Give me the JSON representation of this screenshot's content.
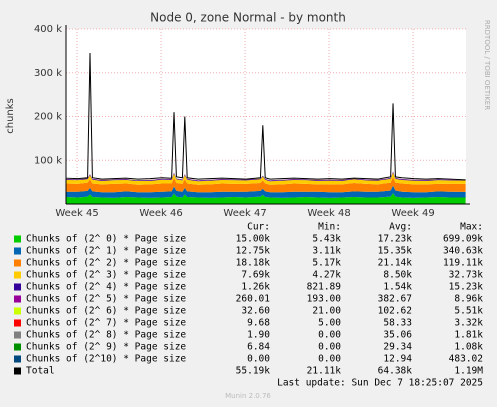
{
  "chart_data": {
    "type": "stacked-area",
    "title": "Node 0, zone Normal - by month",
    "y_label": "chunks",
    "side_text": "RRDTOOL / TOBI OETIKER",
    "x": [
      0,
      1,
      1.8,
      2.0,
      2.2,
      3,
      4,
      5,
      6,
      7,
      8,
      8.8,
      9.0,
      9.2,
      9.7,
      9.9,
      10.1,
      11,
      12,
      13,
      14,
      15,
      16.2,
      16.4,
      16.6,
      17,
      18,
      19,
      20,
      21,
      22,
      23,
      24,
      25,
      26,
      27.05,
      27.25,
      27.45,
      28,
      29,
      30,
      31,
      32,
      33.3
    ],
    "xlim": [
      0,
      33.33
    ],
    "xticks": [
      {
        "value": 0.92,
        "label": "Week 45"
      },
      {
        "value": 7.92,
        "label": "Week 46"
      },
      {
        "value": 14.92,
        "label": "Week 47"
      },
      {
        "value": 21.92,
        "label": "Week 48"
      },
      {
        "value": 28.92,
        "label": "Week 49"
      }
    ],
    "ylim": [
      0,
      400000
    ],
    "yticks": [
      {
        "value": 100000,
        "label": "100 k"
      },
      {
        "value": 200000,
        "label": "200 k"
      },
      {
        "value": 300000,
        "label": "300 k"
      },
      {
        "value": 400000,
        "label": "400 k"
      }
    ],
    "grid": true,
    "stat_headers": [
      "Cur:",
      "Min:",
      "Avg:",
      "Max:"
    ],
    "series": [
      {
        "name": "Chunks of (2^ 0) * Page size",
        "color": "#00cc00",
        "stats": [
          "15.00k",
          "5.43k",
          "17.23k",
          "699.09k"
        ],
        "values": [
          16000,
          15000,
          17000,
          22000,
          16000,
          15000,
          14000,
          16000,
          15000,
          14000,
          15000,
          16000,
          24000,
          17000,
          15000,
          22000,
          16000,
          15000,
          14000,
          15000,
          16000,
          15000,
          17000,
          21000,
          16000,
          15000,
          14000,
          15000,
          16000,
          15000,
          14000,
          15000,
          16000,
          15000,
          15000,
          17000,
          25000,
          17000,
          15000,
          14000,
          15000,
          16000,
          15000,
          15000
        ]
      },
      {
        "name": "Chunks of (2^ 1) * Page size",
        "color": "#0066b3",
        "stats": [
          "12.75k",
          "3.11k",
          "15.35k",
          "340.63k"
        ],
        "values": [
          12000,
          13000,
          13000,
          15000,
          13000,
          12000,
          13000,
          13000,
          12000,
          13000,
          13000,
          13000,
          16000,
          13000,
          13000,
          15000,
          13000,
          12000,
          13000,
          13000,
          12000,
          13000,
          13000,
          14000,
          13000,
          12000,
          13000,
          13000,
          12000,
          13000,
          13000,
          12000,
          13000,
          13000,
          13000,
          14000,
          17000,
          14000,
          13000,
          13000,
          12000,
          13000,
          13000,
          12750
        ]
      },
      {
        "name": "Chunks of (2^ 2) * Page size",
        "color": "#ff8000",
        "stats": [
          "18.18k",
          "5.17k",
          "21.14k",
          "119.11k"
        ],
        "values": [
          19000,
          18000,
          19000,
          20000,
          18000,
          18000,
          19000,
          18000,
          17000,
          18000,
          19000,
          18000,
          20000,
          18000,
          18000,
          20000,
          18000,
          17000,
          18000,
          19000,
          18000,
          18000,
          18000,
          19000,
          18000,
          17000,
          18000,
          19000,
          18000,
          17000,
          18000,
          18000,
          19000,
          18000,
          17000,
          18000,
          20000,
          18000,
          19000,
          18000,
          18000,
          17000,
          18000,
          18180
        ]
      },
      {
        "name": "Chunks of (2^ 3) * Page size",
        "color": "#ffcc00",
        "stats": [
          "7.69k",
          "4.27k",
          "8.50k",
          "32.73k"
        ],
        "values": [
          8000,
          8500,
          8000,
          9000,
          8500,
          8000,
          8500,
          8000,
          8500,
          8000,
          8500,
          8000,
          9500,
          8500,
          8000,
          9000,
          8500,
          8000,
          8500,
          8000,
          8500,
          8000,
          8500,
          9000,
          8500,
          8000,
          8500,
          8000,
          8500,
          8000,
          8500,
          8000,
          8500,
          8000,
          8500,
          8500,
          10000,
          8500,
          8000,
          8500,
          8000,
          8500,
          8000,
          7690
        ]
      },
      {
        "name": "Chunks of (2^ 4) * Page size",
        "color": "#330099",
        "stats": [
          "1.26k",
          "821.89",
          "1.54k",
          "15.23k"
        ],
        "values": [
          1500,
          1500,
          1500,
          1600,
          1500,
          1500,
          1500,
          1500,
          1500,
          1500,
          1500,
          1500,
          1700,
          1500,
          1500,
          1600,
          1500,
          1500,
          1500,
          1500,
          1500,
          1500,
          1500,
          1600,
          1500,
          1500,
          1500,
          1500,
          1500,
          1500,
          1500,
          1500,
          1500,
          1500,
          1500,
          1500,
          1800,
          1500,
          1500,
          1500,
          1500,
          1500,
          1500,
          1260
        ]
      },
      {
        "name": "Chunks of (2^ 5) * Page size",
        "color": "#990099",
        "stats": [
          "260.01",
          "193.00",
          "382.67",
          "8.96k"
        ],
        "values": [
          380,
          380,
          380,
          400,
          380,
          380,
          380,
          380,
          380,
          380,
          380,
          380,
          420,
          380,
          380,
          400,
          380,
          380,
          380,
          380,
          380,
          380,
          380,
          400,
          380,
          380,
          380,
          380,
          380,
          380,
          380,
          380,
          380,
          380,
          380,
          380,
          450,
          380,
          380,
          380,
          380,
          380,
          380,
          260
        ]
      },
      {
        "name": "Chunks of (2^ 6) * Page size",
        "color": "#ccff00",
        "stats": [
          "32.60",
          "21.00",
          "102.62",
          "5.51k"
        ],
        "values": [
          100,
          100,
          100,
          110,
          100,
          100,
          100,
          100,
          100,
          100,
          100,
          100,
          120,
          100,
          100,
          110,
          100,
          100,
          100,
          100,
          100,
          100,
          100,
          110,
          100,
          100,
          100,
          100,
          100,
          100,
          100,
          100,
          100,
          100,
          100,
          100,
          130,
          100,
          100,
          100,
          100,
          100,
          100,
          33
        ]
      },
      {
        "name": "Chunks of (2^ 7) * Page size",
        "color": "#ff0000",
        "stats": [
          "9.68",
          "5.00",
          "58.33",
          "3.32k"
        ],
        "values": [
          58,
          58,
          58,
          60,
          58,
          58,
          58,
          58,
          58,
          58,
          58,
          58,
          62,
          58,
          58,
          60,
          58,
          58,
          58,
          58,
          58,
          58,
          58,
          60,
          58,
          58,
          58,
          58,
          58,
          58,
          58,
          58,
          58,
          58,
          58,
          58,
          64,
          58,
          58,
          58,
          58,
          58,
          58,
          10
        ]
      },
      {
        "name": "Chunks of (2^ 8) * Page size",
        "color": "#808080",
        "stats": [
          "1.90",
          "0.00",
          "35.06",
          "1.81k"
        ],
        "values": [
          35,
          35,
          35,
          36,
          35,
          35,
          35,
          35,
          35,
          35,
          35,
          35,
          37,
          35,
          35,
          36,
          35,
          35,
          35,
          35,
          35,
          35,
          35,
          36,
          35,
          35,
          35,
          35,
          35,
          35,
          35,
          35,
          35,
          35,
          35,
          35,
          38,
          35,
          35,
          35,
          35,
          35,
          35,
          2
        ]
      },
      {
        "name": "Chunks of (2^ 9) * Page size",
        "color": "#008f00",
        "stats": [
          "6.84",
          "0.00",
          "29.34",
          "1.08k"
        ],
        "values": [
          29,
          29,
          29,
          30,
          29,
          29,
          29,
          29,
          29,
          29,
          29,
          29,
          31,
          29,
          29,
          30,
          29,
          29,
          29,
          29,
          29,
          29,
          29,
          30,
          29,
          29,
          29,
          29,
          29,
          29,
          29,
          29,
          29,
          29,
          29,
          29,
          32,
          29,
          29,
          29,
          29,
          29,
          29,
          7
        ]
      },
      {
        "name": "Chunks of (2^10) * Page size",
        "color": "#00487d",
        "stats": [
          "0.00",
          "0.00",
          "12.94",
          "483.02"
        ],
        "values": [
          13,
          13,
          13,
          14,
          13,
          13,
          13,
          13,
          13,
          13,
          13,
          13,
          15,
          13,
          13,
          14,
          13,
          13,
          13,
          13,
          13,
          13,
          13,
          14,
          13,
          13,
          13,
          13,
          13,
          13,
          13,
          13,
          13,
          13,
          13,
          13,
          16,
          13,
          13,
          13,
          13,
          13,
          13,
          0
        ]
      },
      {
        "name": "Total",
        "color": "#000000",
        "line": true,
        "stats": [
          "55.19k",
          "21.11k",
          "64.38k",
          "1.19M"
        ],
        "values": [
          59000,
          58000,
          60000,
          345000,
          60000,
          57000,
          58000,
          59000,
          57000,
          58000,
          60000,
          59000,
          210000,
          62000,
          60000,
          200000,
          60000,
          57000,
          58000,
          59000,
          58000,
          57000,
          60000,
          180000,
          60000,
          57000,
          58000,
          59000,
          58000,
          57000,
          58000,
          57000,
          59000,
          58000,
          57000,
          62000,
          230000,
          62000,
          60000,
          58000,
          57000,
          58000,
          57000,
          55190
        ]
      }
    ],
    "last_update": "Last update: Sun Dec  7 18:25:07 2025",
    "footer": "Munin 2.0.76"
  }
}
